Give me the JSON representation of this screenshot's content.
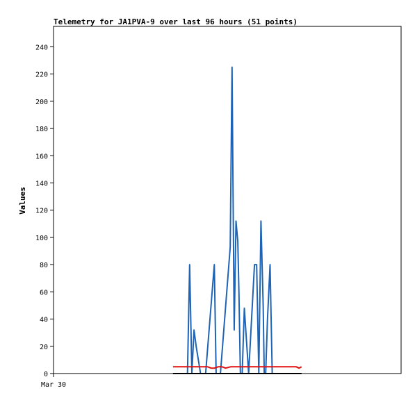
{
  "chart_data": {
    "type": "line",
    "title": "Telemetry for JA1PVA-9 over last 96 hours (51 points)",
    "xlabel": "",
    "ylabel": "Values",
    "x_tick_labels": [
      "Mar 30"
    ],
    "xlim": [
      0,
      96
    ],
    "ylim": [
      0,
      255
    ],
    "y_ticks": [
      0,
      20,
      40,
      60,
      80,
      100,
      120,
      140,
      160,
      180,
      200,
      220,
      240
    ],
    "grid": false,
    "legend": "none",
    "series": [
      {
        "color": "#1f64b4",
        "x": [
          37.0,
          37.6,
          38.2,
          38.8,
          39.4,
          40.6,
          42.0,
          44.4,
          44.9,
          45.6,
          46.1,
          48.8,
          49.3,
          49.9,
          50.4,
          50.9,
          51.2,
          51.6,
          52.1,
          52.7,
          53.9,
          55.5,
          56.1,
          56.7,
          57.3,
          57.9,
          58.2,
          58.6,
          59.1,
          59.8,
          60.4,
          61.6,
          62.2
        ],
        "y": [
          0,
          80,
          0,
          32,
          20,
          0,
          0,
          80,
          0,
          0,
          0,
          93,
          225,
          32,
          112,
          97,
          60,
          0,
          0,
          48,
          0,
          80,
          80,
          0,
          112,
          50,
          0,
          0,
          40,
          80,
          0,
          0,
          0
        ]
      },
      {
        "color": "#e01010",
        "x": [
          33.0,
          34.5,
          36.0,
          37.5,
          39.0,
          40.5,
          41.5,
          42.5,
          43.5,
          44.5,
          45.5,
          46.5,
          47.5,
          49.0,
          51.0,
          53.0,
          55.0,
          57.0,
          59.0,
          61.0,
          63.0,
          65.0,
          67.0,
          67.8,
          68.5
        ],
        "y": [
          5,
          5,
          5,
          5,
          5,
          5,
          5,
          5,
          4,
          4,
          5,
          5,
          4,
          5,
          5,
          5,
          5,
          5,
          5,
          5,
          5,
          5,
          5,
          4,
          5
        ]
      },
      {
        "color": "#000000",
        "x": [
          33.0,
          68.5
        ],
        "y": [
          0,
          0
        ]
      }
    ]
  }
}
